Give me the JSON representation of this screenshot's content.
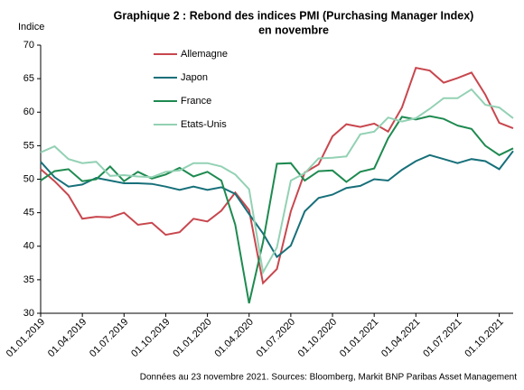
{
  "chart_data": {
    "type": "line",
    "title": [
      "Graphique 2 : Rebond des indices PMI (Purchasing Manager Index)",
      "en novembre"
    ],
    "ylabel": "Indice",
    "note": "Données au 23 novembre 2021. Sources: Bloomberg, Markit BNP Paribas Asset Management",
    "categories": [
      "01.01.2019",
      null,
      null,
      "01.04.2019",
      null,
      null,
      "01.07.2019",
      null,
      null,
      "01.10.2019",
      null,
      null,
      "01.01.2020",
      null,
      null,
      "01.04.2020",
      null,
      null,
      "01.07.2020",
      null,
      null,
      "01.10.2020",
      null,
      null,
      "01.01.2021",
      null,
      null,
      "01.04.2021",
      null,
      null,
      "01.07.2021",
      null,
      null,
      "01.10.2021",
      null
    ],
    "series": [
      {
        "name": "Allemagne",
        "color": "#c8474e",
        "values": [
          51.5,
          49.7,
          47.6,
          44.1,
          44.4,
          44.3,
          45.0,
          43.2,
          43.5,
          41.7,
          42.1,
          44.1,
          43.7,
          45.3,
          48.0,
          45.4,
          34.5,
          36.6,
          45.2,
          51.0,
          52.2,
          56.4,
          58.2,
          57.8,
          58.3,
          57.1,
          60.7,
          66.6,
          66.2,
          64.4,
          65.1,
          65.9,
          62.6,
          58.4,
          57.6
        ]
      },
      {
        "name": "Japon",
        "color": "#17707a",
        "values": [
          52.6,
          50.3,
          48.9,
          49.2,
          50.2,
          49.8,
          49.4,
          49.4,
          49.3,
          48.9,
          48.4,
          48.9,
          48.4,
          48.8,
          47.8,
          44.8,
          41.9,
          38.4,
          40.1,
          45.2,
          47.2,
          47.7,
          48.7,
          49.0,
          50.0,
          49.8,
          51.4,
          52.7,
          53.6,
          53.0,
          52.4,
          53.0,
          52.7,
          51.5,
          54.2
        ]
      },
      {
        "name": "France",
        "color": "#1e8a50",
        "values": [
          49.8,
          51.2,
          51.5,
          49.7,
          50.0,
          51.9,
          49.7,
          51.1,
          50.1,
          50.7,
          51.7,
          50.4,
          51.1,
          49.8,
          43.2,
          31.5,
          40.6,
          52.3,
          52.4,
          49.8,
          51.2,
          51.3,
          49.6,
          51.1,
          51.6,
          56.1,
          59.3,
          58.9,
          59.4,
          59.0,
          58.0,
          57.5,
          55.0,
          53.6,
          54.6
        ]
      },
      {
        "name": "Etats-Unis",
        "color": "#93d1b4",
        "values": [
          54.0,
          54.9,
          53.0,
          52.4,
          52.6,
          50.5,
          50.6,
          50.4,
          50.3,
          51.1,
          51.3,
          52.4,
          52.4,
          51.9,
          50.7,
          48.5,
          36.1,
          39.8,
          49.8,
          50.9,
          53.1,
          53.2,
          53.4,
          56.7,
          57.1,
          59.2,
          58.6,
          59.1,
          60.5,
          62.1,
          62.1,
          63.4,
          61.1,
          60.7,
          59.1
        ]
      }
    ],
    "ylim": [
      30,
      70
    ],
    "yticks": [
      30,
      35,
      40,
      45,
      50,
      55,
      60,
      65,
      70
    ]
  }
}
